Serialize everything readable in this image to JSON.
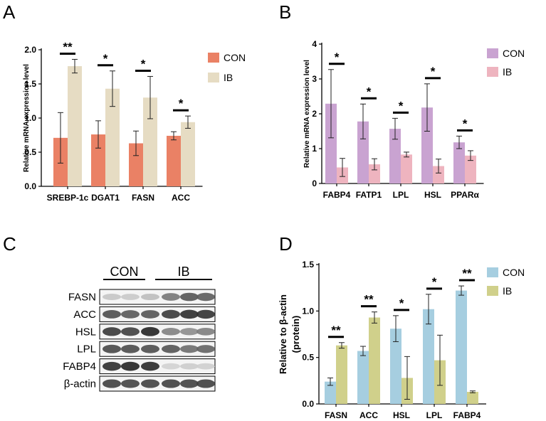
{
  "panels": {
    "A": "A",
    "B": "B",
    "C": "C",
    "D": "D"
  },
  "colors": {
    "A_con": "#EA8165",
    "A_ib": "#E6DCC3",
    "B_con": "#C9A3D1",
    "B_ib": "#EEB4BF",
    "D_con": "#A6CEE0",
    "D_ib": "#D0D08B"
  },
  "chart_data": [
    {
      "id": "A",
      "type": "bar",
      "categories": [
        "SREBP-1c",
        "DGAT1",
        "FASN",
        "ACC"
      ],
      "ylabel": "Relative mRNA expression level",
      "ylim": [
        0,
        2.0
      ],
      "yticks": [
        "0.0",
        "0.5",
        "1.0",
        "1.5",
        "2.0"
      ],
      "series": [
        {
          "name": "CON",
          "values": [
            0.71,
            0.76,
            0.63,
            0.74
          ],
          "errors": [
            0.37,
            0.2,
            0.18,
            0.06
          ]
        },
        {
          "name": "IB",
          "values": [
            1.76,
            1.43,
            1.3,
            0.94
          ],
          "errors": [
            0.1,
            0.26,
            0.31,
            0.09
          ]
        }
      ],
      "significance": [
        "**",
        "*",
        "*",
        "*"
      ],
      "legend": "right"
    },
    {
      "id": "B",
      "type": "bar",
      "categories": [
        "FABP4",
        "FATP1",
        "LPL",
        "HSL",
        "PPARα"
      ],
      "ylabel": "Relative mRNA expression level",
      "ylim": [
        0,
        4
      ],
      "yticks": [
        "0",
        "1",
        "2",
        "3",
        "4"
      ],
      "series": [
        {
          "name": "CON",
          "values": [
            2.29,
            1.78,
            1.57,
            2.18,
            1.18
          ],
          "errors": [
            0.98,
            0.5,
            0.3,
            0.68,
            0.18
          ]
        },
        {
          "name": "IB",
          "values": [
            0.46,
            0.55,
            0.83,
            0.5,
            0.8
          ],
          "errors": [
            0.26,
            0.16,
            0.07,
            0.2,
            0.14
          ]
        }
      ],
      "significance": [
        "*",
        "*",
        "*",
        "*",
        "*"
      ],
      "legend": "right"
    },
    {
      "id": "D",
      "type": "bar",
      "categories": [
        "FASN",
        "ACC",
        "HSL",
        "LPL",
        "FABP4"
      ],
      "ylabel": "Relative to β-actin",
      "ylabel2": "(protein)",
      "ylim": [
        0,
        1.5
      ],
      "yticks": [
        "0.0",
        "0.5",
        "1.0",
        "1.5"
      ],
      "series": [
        {
          "name": "CON",
          "values": [
            0.24,
            0.57,
            0.81,
            1.02,
            1.22
          ],
          "errors": [
            0.04,
            0.05,
            0.14,
            0.16,
            0.05
          ]
        },
        {
          "name": "IB",
          "values": [
            0.63,
            0.93,
            0.28,
            0.47,
            0.13
          ],
          "errors": [
            0.03,
            0.06,
            0.23,
            0.27,
            0.01
          ]
        }
      ],
      "significance": [
        "**",
        "**",
        "*",
        "*",
        "**"
      ],
      "legend": "right"
    }
  ],
  "blot": {
    "groups": [
      "CON",
      "IB"
    ],
    "rows": [
      {
        "label": "FASN",
        "con": [
          0.18,
          0.16,
          0.22
        ],
        "ib": [
          0.55,
          0.72,
          0.68
        ]
      },
      {
        "label": "ACC",
        "con": [
          0.75,
          0.7,
          0.72
        ],
        "ib": [
          0.85,
          0.9,
          0.88
        ]
      },
      {
        "label": "HSL",
        "con": [
          0.85,
          0.82,
          0.95
        ],
        "ib": [
          0.5,
          0.45,
          0.52
        ]
      },
      {
        "label": "LPL",
        "con": [
          0.78,
          0.76,
          0.75
        ],
        "ib": [
          0.72,
          0.6,
          0.65
        ]
      },
      {
        "label": "FABP4",
        "con": [
          0.9,
          0.95,
          0.92
        ],
        "ib": [
          0.12,
          0.15,
          0.14
        ]
      },
      {
        "label": "β-actin",
        "con": [
          0.82,
          0.8,
          0.81
        ],
        "ib": [
          0.82,
          0.81,
          0.82
        ]
      }
    ]
  }
}
